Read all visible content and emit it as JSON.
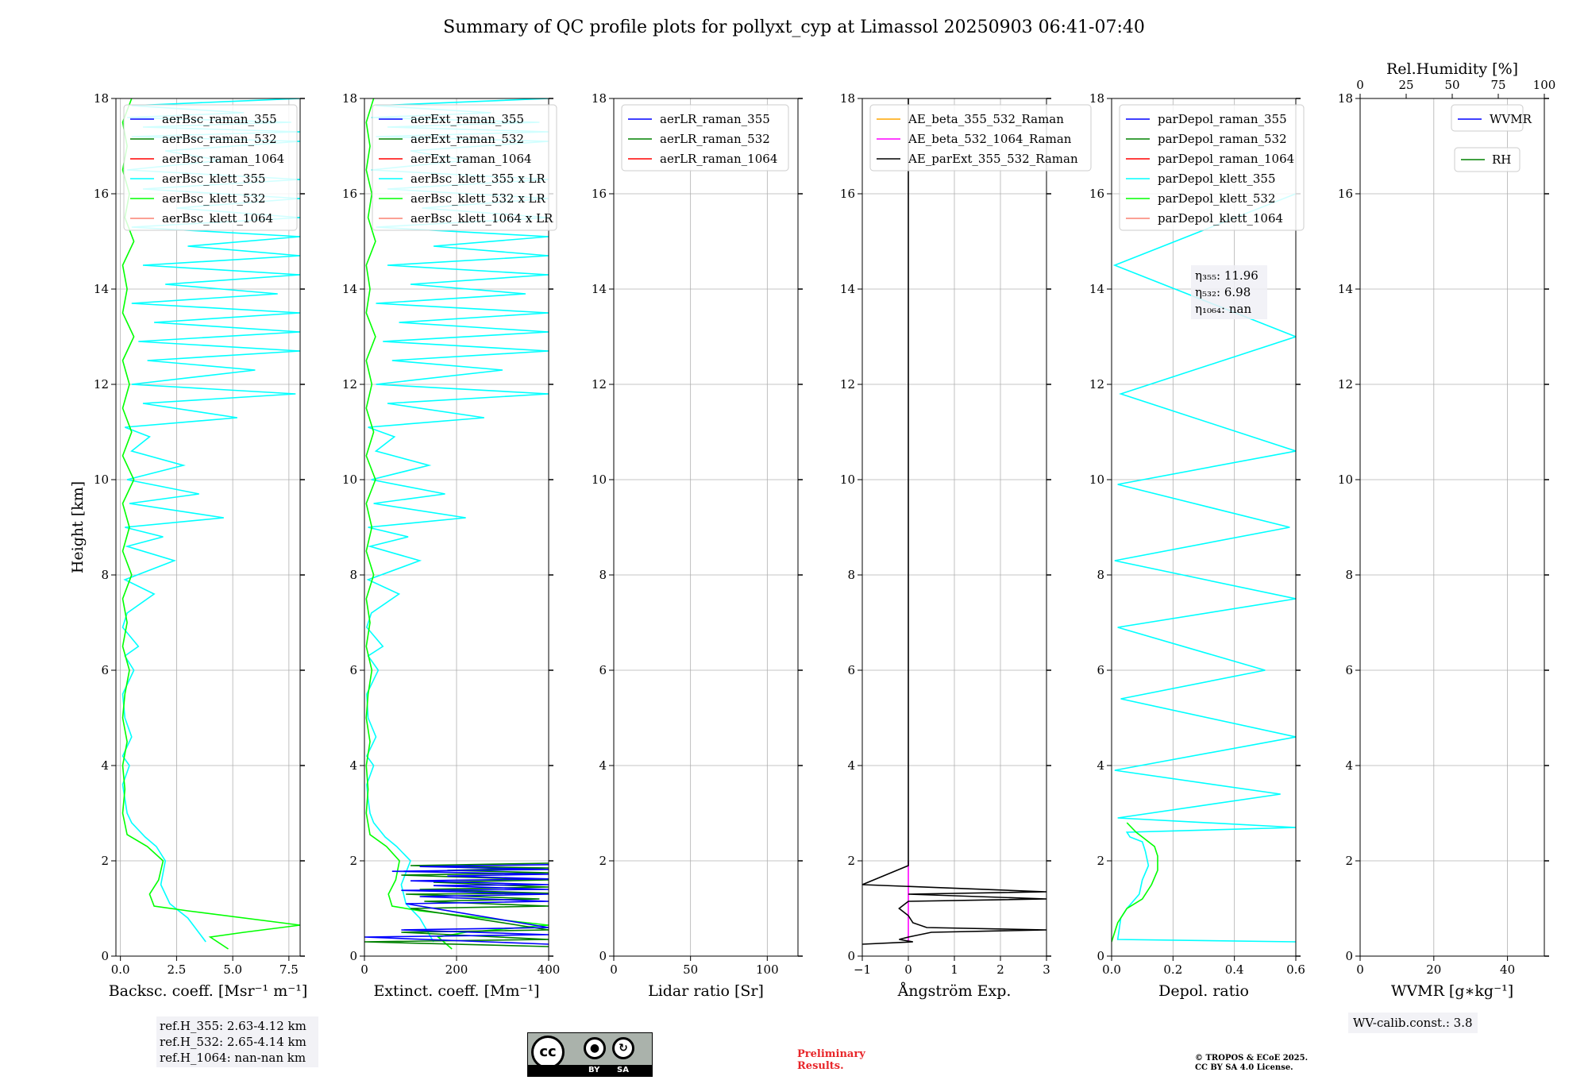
{
  "title": "Summary of QC profile plots for pollyxt_cyp at Limassol 20250903 06:41-07:40",
  "ylabel": "Height [km]",
  "y_ticks": [
    "0",
    "2",
    "4",
    "6",
    "8",
    "10",
    "12",
    "14",
    "16",
    "18"
  ],
  "ref_heights": [
    "ref.H_355: 2.63-4.12 km",
    "ref.H_532: 2.65-4.14 km",
    "ref.H_1064: nan-nan km"
  ],
  "wv_calib": "WV-calib.const.: 3.8",
  "preliminary": [
    "Preliminary",
    "Results."
  ],
  "copyright": [
    "© TROPOS & ECoE 2025.",
    "CC BY SA 4.0 License."
  ],
  "license_badge": {
    "cc": "cc",
    "by": "BY",
    "sa": "SA"
  },
  "colors": {
    "blue": "#0000ff",
    "green": "#008000",
    "red": "#ff0000",
    "cyan": "#00ffff",
    "lime": "#00ff00",
    "salmon": "#fa8072",
    "orange": "#ffa500",
    "magenta": "#ff00ff",
    "black": "#000000"
  },
  "chart_data": [
    {
      "type": "line",
      "id": "bsc",
      "xlabel": "Backsc. coeff. [Msr⁻¹ m⁻¹]",
      "xlim": [
        -0.2,
        8.0
      ],
      "ylim": [
        0,
        18
      ],
      "xticks": [
        0,
        2.5,
        5,
        7.5
      ],
      "xtick_labels": [
        "0.0",
        "2.5",
        "5.0",
        "7.5"
      ],
      "legend": [
        {
          "label": "aerBsc_raman_355",
          "color": "#0000ff"
        },
        {
          "label": "aerBsc_raman_532",
          "color": "#008000"
        },
        {
          "label": "aerBsc_raman_1064",
          "color": "#ff0000"
        },
        {
          "label": "aerBsc_klett_355",
          "color": "#00ffff"
        },
        {
          "label": "aerBsc_klett_532",
          "color": "#00ff00"
        },
        {
          "label": "aerBsc_klett_1064",
          "color": "#fa8072"
        }
      ],
      "series": [
        {
          "name": "aerBsc_klett_355",
          "color": "#00ffff",
          "x": [
            3.8,
            3.0,
            2.2,
            1.8,
            2.0,
            1.6,
            1.1,
            0.5,
            0.3,
            0.2,
            0.1,
            0.4,
            0.1,
            0.5,
            0.2,
            0.1,
            0.6,
            0.2,
            0.8,
            0.1,
            0.3,
            1.5,
            0.2,
            2.4,
            0.3,
            1.9,
            0.2,
            4.6,
            0.4,
            3.5,
            0.3,
            2.8,
            0.5,
            1.3,
            0.2,
            5.2,
            1.0,
            7.8,
            0.5,
            6.0,
            1.2,
            8.0,
            0.8,
            8.0,
            1.5,
            8.0,
            0.5,
            7.0,
            2.0,
            8.0,
            1.0,
            8.0,
            3.0,
            8.0,
            0.5,
            8.0,
            2.5,
            8.0,
            1.0,
            8.0,
            0.3,
            4.5,
            2.0,
            8.0,
            0.5,
            8.0,
            1.0,
            7.6,
            0.3,
            5.5,
            0.5,
            8.0
          ],
          "y": [
            0.3,
            0.8,
            1.1,
            1.5,
            2.0,
            2.3,
            2.5,
            2.8,
            3.0,
            3.3,
            3.6,
            4.0,
            4.2,
            4.6,
            5.0,
            5.5,
            6.0,
            6.3,
            6.5,
            6.9,
            7.2,
            7.6,
            7.9,
            8.3,
            8.6,
            8.8,
            9.0,
            9.2,
            9.5,
            9.7,
            10.0,
            10.3,
            10.6,
            10.9,
            11.1,
            11.3,
            11.6,
            11.8,
            12.0,
            12.3,
            12.5,
            12.7,
            12.9,
            13.1,
            13.3,
            13.5,
            13.7,
            13.9,
            14.1,
            14.3,
            14.5,
            14.7,
            14.9,
            15.1,
            15.3,
            15.5,
            15.7,
            15.9,
            16.1,
            16.3,
            16.5,
            16.7,
            16.9,
            17.1,
            17.2,
            17.3,
            17.4,
            17.5,
            17.6,
            17.7,
            17.85,
            18.0
          ]
        },
        {
          "name": "aerBsc_klett_532",
          "color": "#00ff00",
          "x": [
            4.8,
            4.0,
            5.5,
            8.0,
            3.0,
            1.5,
            1.3,
            1.7,
            1.9,
            1.2,
            0.3,
            0.1,
            0.2,
            0.1,
            0.3,
            0.1,
            0.2,
            0.4,
            0.1,
            0.3,
            0.1,
            0.5,
            0.1,
            0.4,
            0.1,
            0.6,
            0.1,
            0.5,
            0.1,
            0.4,
            0.1,
            0.6,
            0.1,
            0.3,
            0.1,
            0.6,
            0.2,
            0.4,
            0.1,
            0.3,
            0.1,
            0.5
          ],
          "y": [
            0.15,
            0.4,
            0.5,
            0.65,
            0.95,
            1.05,
            1.3,
            1.6,
            2.0,
            2.3,
            2.55,
            3.0,
            3.5,
            4.0,
            4.5,
            5.0,
            5.5,
            6.0,
            6.5,
            7.0,
            7.5,
            8.0,
            8.5,
            9.0,
            9.5,
            10.0,
            10.5,
            11.0,
            11.5,
            12.0,
            12.5,
            13.0,
            13.5,
            14.0,
            14.5,
            15.0,
            15.5,
            16.0,
            16.5,
            17.0,
            17.5,
            18.0
          ]
        }
      ]
    },
    {
      "type": "line",
      "id": "ext",
      "xlabel": "Extinct. coeff. [Mm⁻¹]",
      "xlim": [
        0,
        400
      ],
      "ylim": [
        0,
        18
      ],
      "xticks": [
        0,
        200,
        400
      ],
      "xtick_labels": [
        "0",
        "200",
        "400"
      ],
      "legend": [
        {
          "label": "aerExt_raman_355",
          "color": "#0000ff"
        },
        {
          "label": "aerExt_raman_532",
          "color": "#008000"
        },
        {
          "label": "aerExt_raman_1064",
          "color": "#ff0000"
        },
        {
          "label": "aerBsc_klett_355 x LR",
          "color": "#00ffff"
        },
        {
          "label": "aerBsc_klett_532 x LR",
          "color": "#00ff00"
        },
        {
          "label": "aerBsc_klett_1064 x LR",
          "color": "#fa8072"
        }
      ],
      "series": [
        {
          "name": "aerBsc_klett_355 x LR",
          "color": "#00ffff",
          "x": [
            150,
            120,
            90,
            80,
            100,
            70,
            45,
            20,
            12,
            8,
            5,
            20,
            5,
            25,
            8,
            5,
            30,
            8,
            40,
            5,
            15,
            75,
            8,
            120,
            12,
            95,
            8,
            220,
            20,
            175,
            15,
            140,
            25,
            65,
            8,
            260,
            50,
            400,
            25,
            300,
            60,
            400,
            40,
            400,
            75,
            400,
            25,
            350,
            100,
            400,
            50,
            400,
            150,
            400,
            25,
            400,
            125,
            400,
            50,
            400,
            15,
            220,
            100,
            400,
            25,
            400,
            50,
            380,
            15,
            275,
            25,
            400
          ],
          "y": [
            0.3,
            0.8,
            1.1,
            1.5,
            2.0,
            2.3,
            2.5,
            2.8,
            3.0,
            3.3,
            3.6,
            4.0,
            4.2,
            4.6,
            5.0,
            5.5,
            6.0,
            6.3,
            6.5,
            6.9,
            7.2,
            7.6,
            7.9,
            8.3,
            8.6,
            8.8,
            9.0,
            9.2,
            9.5,
            9.7,
            10.0,
            10.3,
            10.6,
            10.9,
            11.1,
            11.3,
            11.6,
            11.8,
            12.0,
            12.3,
            12.5,
            12.7,
            12.9,
            13.1,
            13.3,
            13.5,
            13.7,
            13.9,
            14.1,
            14.3,
            14.5,
            14.7,
            14.9,
            15.1,
            15.3,
            15.5,
            15.7,
            15.9,
            16.1,
            16.3,
            16.5,
            16.7,
            16.9,
            17.1,
            17.2,
            17.3,
            17.4,
            17.5,
            17.6,
            17.7,
            17.85,
            18.0
          ]
        },
        {
          "name": "aerBsc_klett_532 x LR",
          "color": "#00ff00",
          "x": [
            190,
            160,
            220,
            400,
            120,
            60,
            52,
            68,
            76,
            48,
            12,
            4,
            8,
            4,
            12,
            4,
            8,
            16,
            4,
            12,
            4,
            20,
            4,
            16,
            4,
            24,
            4,
            20,
            4,
            16,
            4,
            24,
            4,
            12,
            4,
            24,
            8,
            16,
            4,
            12,
            4,
            20
          ],
          "y": [
            0.15,
            0.4,
            0.5,
            0.65,
            0.95,
            1.05,
            1.3,
            1.6,
            2.0,
            2.3,
            2.55,
            3.0,
            3.5,
            4.0,
            4.5,
            5.0,
            5.5,
            6.0,
            6.5,
            7.0,
            7.5,
            8.0,
            8.5,
            9.0,
            9.5,
            10.0,
            10.5,
            11.0,
            11.5,
            12.0,
            12.5,
            13.0,
            13.5,
            14.0,
            14.5,
            15.0,
            15.5,
            16.0,
            16.5,
            17.0,
            17.5,
            18.0
          ]
        },
        {
          "name": "aerExt_raman_532",
          "color": "#008000",
          "x": [
            400,
            0,
            400,
            80,
            400,
            100,
            400,
            130,
            380,
            90,
            400,
            120,
            400,
            150,
            400,
            80,
            400,
            180,
            400,
            100,
            400
          ],
          "y": [
            0.2,
            0.3,
            0.35,
            0.5,
            0.55,
            1.0,
            1.05,
            1.15,
            1.2,
            1.3,
            1.32,
            1.4,
            1.45,
            1.55,
            1.6,
            1.7,
            1.75,
            1.8,
            1.85,
            1.9,
            1.95
          ]
        },
        {
          "name": "aerExt_raman_355",
          "color": "#0000ff",
          "x": [
            400,
            0,
            400,
            80,
            400,
            90,
            400,
            120,
            400,
            80,
            400,
            150,
            400,
            100,
            400,
            180,
            400,
            60,
            400,
            120,
            400
          ],
          "y": [
            0.25,
            0.4,
            0.45,
            0.55,
            0.6,
            1.1,
            1.15,
            1.25,
            1.3,
            1.38,
            1.4,
            1.48,
            1.5,
            1.58,
            1.62,
            1.68,
            1.72,
            1.78,
            1.82,
            1.88,
            1.92
          ]
        }
      ]
    },
    {
      "type": "line",
      "id": "lr",
      "xlabel": "Lidar ratio [Sr]",
      "xlim": [
        0,
        120
      ],
      "ylim": [
        0,
        18
      ],
      "xticks": [
        0,
        50,
        100
      ],
      "xtick_labels": [
        "0",
        "50",
        "100"
      ],
      "legend": [
        {
          "label": "aerLR_raman_355",
          "color": "#0000ff"
        },
        {
          "label": "aerLR_raman_532",
          "color": "#008000"
        },
        {
          "label": "aerLR_raman_1064",
          "color": "#ff0000"
        }
      ],
      "series": []
    },
    {
      "type": "line",
      "id": "ae",
      "xlabel": "Ångström Exp.",
      "xlim": [
        -1,
        3
      ],
      "ylim": [
        0,
        18
      ],
      "xticks": [
        -1,
        0,
        1,
        2,
        3
      ],
      "xtick_labels": [
        "−1",
        "0",
        "1",
        "2",
        "3"
      ],
      "legend": [
        {
          "label": "AE_beta_355_532_Raman",
          "color": "#ffa500"
        },
        {
          "label": "AE_beta_532_1064_Raman",
          "color": "#ff00ff"
        },
        {
          "label": "AE_parExt_355_532_Raman",
          "color": "#000000"
        }
      ],
      "series": [
        {
          "name": "AE_beta_532_1064_Raman",
          "color": "#ff00ff",
          "x": [
            0,
            0,
            0
          ],
          "y": [
            0.3,
            1.0,
            2.0
          ]
        },
        {
          "name": "AE_parExt_355_532_Raman",
          "color": "#000000",
          "x": [
            -1,
            0.1,
            -0.2,
            0.0,
            0.5,
            3.0,
            0.4,
            0.1,
            0.0,
            -0.2,
            0.0,
            3.0,
            0.0,
            3.0,
            -1,
            0.0,
            0.0,
            0.0
          ],
          "y": [
            0.25,
            0.3,
            0.35,
            0.4,
            0.5,
            0.55,
            0.6,
            0.7,
            0.85,
            1.0,
            1.15,
            1.2,
            1.3,
            1.35,
            1.5,
            1.9,
            2.0,
            18.0
          ]
        }
      ]
    },
    {
      "type": "line",
      "id": "dep",
      "xlabel": "Depol. ratio",
      "xlim": [
        0,
        0.6
      ],
      "ylim": [
        0,
        18
      ],
      "xticks": [
        0,
        0.2,
        0.4,
        0.6
      ],
      "xtick_labels": [
        "0.0",
        "0.2",
        "0.4",
        "0.6"
      ],
      "legend": [
        {
          "label": "parDepol_raman_355",
          "color": "#0000ff"
        },
        {
          "label": "parDepol_raman_532",
          "color": "#008000"
        },
        {
          "label": "parDepol_raman_1064",
          "color": "#ff0000"
        },
        {
          "label": "parDepol_klett_355",
          "color": "#00ffff"
        },
        {
          "label": "parDepol_klett_532",
          "color": "#00ff00"
        },
        {
          "label": "parDepol_klett_1064",
          "color": "#fa8072"
        }
      ],
      "annotation": [
        "η₃₅₅: 11.96",
        "η₅₃₂: 6.98",
        "η₁₀₆₄: nan"
      ],
      "series": [
        {
          "name": "parDepol_klett_355",
          "color": "#00ffff",
          "x": [
            0.6,
            0.02,
            0.03,
            0.05,
            0.09,
            0.1,
            0.12,
            0.11,
            0.1,
            0.06,
            0.05,
            0.6,
            0.02,
            0.55,
            0.01,
            0.6,
            0.03,
            0.5,
            0.02,
            0.6,
            0.01,
            0.58,
            0.02,
            0.6,
            0.03,
            0.6,
            0.01,
            0.6
          ],
          "y": [
            0.3,
            0.35,
            0.8,
            1.0,
            1.3,
            1.6,
            1.9,
            2.2,
            2.4,
            2.5,
            2.6,
            2.7,
            2.9,
            3.4,
            3.9,
            4.6,
            5.4,
            6.0,
            6.9,
            7.5,
            8.3,
            9.0,
            9.9,
            10.6,
            11.8,
            13.0,
            14.5,
            16.0
          ]
        },
        {
          "name": "parDepol_klett_532",
          "color": "#00ff00",
          "x": [
            0.0,
            0.02,
            0.05,
            0.1,
            0.13,
            0.15,
            0.15,
            0.14,
            0.12,
            0.1,
            0.08,
            0.05
          ],
          "y": [
            0.3,
            0.7,
            1.0,
            1.2,
            1.5,
            1.8,
            2.1,
            2.3,
            2.4,
            2.5,
            2.6,
            2.8
          ]
        }
      ]
    },
    {
      "type": "line",
      "id": "wv",
      "xlabel": "WVMR [g∗kg⁻¹]",
      "xlim": [
        0,
        50
      ],
      "ylim": [
        0,
        18
      ],
      "xticks": [
        0,
        20,
        40
      ],
      "xtick_labels": [
        "0",
        "20",
        "40"
      ],
      "top_axis": {
        "label": "Rel.Humidity [%]",
        "lim": [
          0,
          100
        ],
        "ticks": [
          0,
          25,
          50,
          75,
          100
        ],
        "tick_labels": [
          "0",
          "25",
          "50",
          "75",
          "100"
        ]
      },
      "legend": [
        {
          "label": "WVMR",
          "color": "#0000ff"
        }
      ],
      "legend2": [
        {
          "label": "RH",
          "color": "#008000"
        }
      ],
      "series": []
    }
  ]
}
